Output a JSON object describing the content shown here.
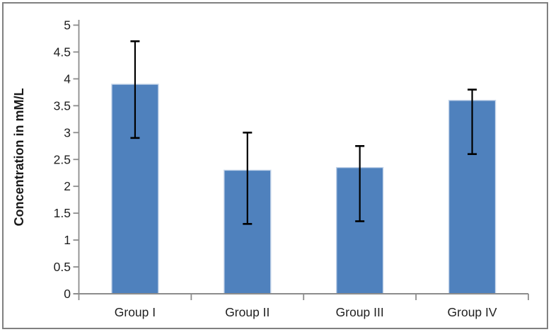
{
  "figure": {
    "kind": "bar chart with error bars",
    "background_color": "#ffffff",
    "frame_color": "#808080"
  },
  "chart_data": {
    "type": "bar",
    "title": "",
    "categories": [
      "Group I",
      "Group II",
      "Group III",
      "Group IV"
    ],
    "values": [
      3.9,
      2.3,
      2.35,
      3.6
    ],
    "error_low": [
      2.9,
      1.3,
      1.35,
      2.6
    ],
    "error_high": [
      4.7,
      3.0,
      2.75,
      3.8
    ],
    "xlabel": "",
    "ylabel": "Concentration in mM/L",
    "ylim": [
      0,
      5
    ],
    "yticks": [
      0,
      0.5,
      1,
      1.5,
      2,
      2.5,
      3,
      3.5,
      4,
      4.5,
      5
    ],
    "grid": false,
    "legend_position": "none",
    "bar_color": "#4f81bd",
    "bar_border_color": "#c7d6ea",
    "error_bar_color": "#000000",
    "axis_color": "#8c8c8c",
    "text_color": "#1f1f1f"
  }
}
